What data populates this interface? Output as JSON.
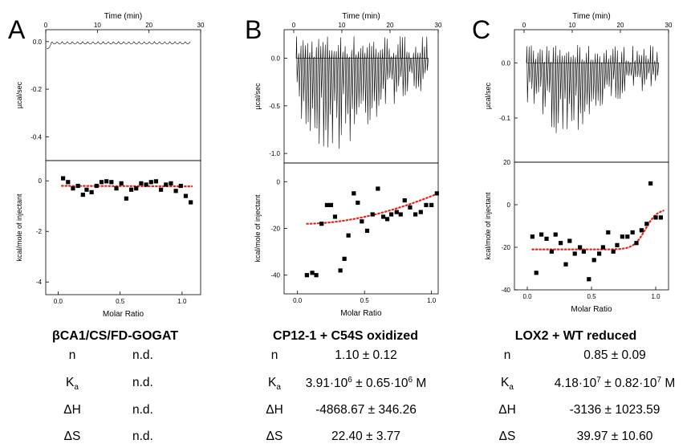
{
  "panels": [
    {
      "letter": "A",
      "title": "βCA1/CS/FD-GOGAT",
      "params": [
        {
          "sym": "n",
          "sub": "",
          "value": "n.d.",
          "sup1": "",
          "mid": "",
          "sup2": "",
          "end": ""
        },
        {
          "sym": "K",
          "sub": "a",
          "value": "n.d.",
          "sup1": "",
          "mid": "",
          "sup2": "",
          "end": ""
        },
        {
          "sym": "ΔH",
          "sub": "",
          "value": "n.d.",
          "sup1": "",
          "mid": "",
          "sup2": "",
          "end": ""
        },
        {
          "sym": "ΔS",
          "sub": "",
          "value": "n.d.",
          "sup1": "",
          "mid": "",
          "sup2": "",
          "end": ""
        }
      ]
    },
    {
      "letter": "B",
      "title": "CP12-1 + C54S oxidized",
      "params": [
        {
          "sym": "n",
          "sub": "",
          "value": "1.10 ± 0.12",
          "sup1": "",
          "mid": "",
          "sup2": "",
          "end": ""
        },
        {
          "sym": "K",
          "sub": "a",
          "value": "3.91·10",
          "sup1": "6",
          "mid": " ± 0.65·10",
          "sup2": "6",
          "end": " M"
        },
        {
          "sym": "ΔH",
          "sub": "",
          "value": "-4868.67 ± 346.26",
          "sup1": "",
          "mid": "",
          "sup2": "",
          "end": ""
        },
        {
          "sym": "ΔS",
          "sub": "",
          "value": "22.40 ± 3.77",
          "sup1": "",
          "mid": "",
          "sup2": "",
          "end": ""
        }
      ]
    },
    {
      "letter": "C",
      "title": "LOX2 + WT reduced",
      "params": [
        {
          "sym": "n",
          "sub": "",
          "value": "0.85 ± 0.09",
          "sup1": "",
          "mid": "",
          "sup2": "",
          "end": ""
        },
        {
          "sym": "K",
          "sub": "a",
          "value": "4.18·10",
          "sup1": "7",
          "mid": " ± 0.82·10",
          "sup2": "7",
          "end": " M"
        },
        {
          "sym": "ΔH",
          "sub": "",
          "value": "-3136 ± 1023.59",
          "sup1": "",
          "mid": "",
          "sup2": "",
          "end": ""
        },
        {
          "sym": "ΔS",
          "sub": "",
          "value": "39.97 ± 10.60",
          "sup1": "",
          "mid": "",
          "sup2": "",
          "end": ""
        }
      ]
    }
  ],
  "chart_data": [
    {
      "panel": "A",
      "type": "line",
      "title": "",
      "xlabel": "Time (min)",
      "ylabel": "µcal/sec",
      "xlim": [
        0,
        30
      ],
      "ylim": [
        -0.5,
        0.05
      ],
      "xticks": [
        0,
        10,
        20,
        30
      ],
      "yticks": [
        0.0,
        -0.2,
        -0.4
      ],
      "ytick_labels": [
        "0.0",
        "-0.2",
        "-0.4"
      ],
      "baseline": 0.0,
      "t_range": [
        0.2,
        28
      ],
      "trace": {
        "mode": "flat",
        "n_injections": 28,
        "amplitude": 0.02,
        "start_offset": -0.03
      }
    },
    {
      "panel": "A",
      "type": "scatter",
      "title": "",
      "xlabel": "Molar Ratio",
      "ylabel": "kcal/mole of injectant",
      "xlim": [
        -0.1,
        1.15
      ],
      "ylim": [
        -4.5,
        0.8
      ],
      "xticks": [
        0.0,
        0.5,
        1.0
      ],
      "yticks": [
        0,
        -2,
        -4
      ],
      "x": [
        0.04,
        0.08,
        0.12,
        0.16,
        0.2,
        0.23,
        0.27,
        0.31,
        0.35,
        0.39,
        0.43,
        0.47,
        0.51,
        0.55,
        0.59,
        0.63,
        0.67,
        0.71,
        0.75,
        0.79,
        0.83,
        0.87,
        0.91,
        0.95,
        0.99,
        1.03,
        1.07
      ],
      "y": [
        0.1,
        -0.05,
        -0.3,
        -0.2,
        -0.55,
        -0.35,
        -0.45,
        -0.2,
        -0.05,
        -0.02,
        -0.05,
        -0.3,
        -0.1,
        -0.7,
        -0.35,
        -0.3,
        -0.1,
        -0.15,
        -0.05,
        -0.02,
        -0.35,
        -0.15,
        -0.1,
        -0.4,
        -0.2,
        -0.6,
        -0.85
      ],
      "fit": {
        "x": [
          0.03,
          1.08
        ],
        "y": [
          -0.2,
          -0.22
        ]
      }
    },
    {
      "panel": "B",
      "type": "line",
      "title": "",
      "xlabel": "Time (min)",
      "ylabel": "µcal/sec",
      "xlim": [
        -2,
        30
      ],
      "ylim": [
        -1.1,
        0.3
      ],
      "xticks": [
        0,
        10,
        20,
        30
      ],
      "yticks": [
        0.0,
        -0.5,
        -1.0
      ],
      "ytick_labels": [
        "0.0",
        "-0.5",
        "-1.0"
      ],
      "baseline": 0.0,
      "t_range": [
        0.5,
        28
      ],
      "trace": {
        "mode": "spiky",
        "n_injections": 60,
        "amplitude": 1.0
      }
    },
    {
      "panel": "B",
      "type": "scatter",
      "title": "",
      "xlabel": "Molar Ratio",
      "ylabel": "kcal/mole of injectant",
      "xlim": [
        -0.1,
        1.05
      ],
      "ylim": [
        -48,
        8
      ],
      "xticks": [
        0.0,
        0.5,
        1.0
      ],
      "yticks": [
        0,
        -20,
        -40
      ],
      "x": [
        0.07,
        0.11,
        0.14,
        0.18,
        0.22,
        0.25,
        0.28,
        0.32,
        0.35,
        0.38,
        0.42,
        0.45,
        0.48,
        0.52,
        0.56,
        0.6,
        0.64,
        0.67,
        0.7,
        0.74,
        0.77,
        0.8,
        0.84,
        0.88,
        0.92,
        0.96,
        1.0,
        1.04
      ],
      "y": [
        -40,
        -39,
        -40,
        -18,
        -10,
        -10,
        -15,
        -38,
        -33,
        -23,
        -5,
        -9,
        -17,
        -21,
        -14,
        -3,
        -15,
        -16,
        -14,
        -13,
        -14,
        -8,
        -11,
        -14,
        -13,
        -10,
        -10,
        -5
      ],
      "fit": {
        "x": [
          0.07,
          1.05
        ],
        "y_start": -18,
        "y_end": -5
      }
    },
    {
      "panel": "C",
      "type": "line",
      "title": "",
      "xlabel": "Time (min)",
      "ylabel": "µcal/sec",
      "xlim": [
        -2,
        30
      ],
      "ylim": [
        -0.18,
        0.06
      ],
      "xticks": [
        0,
        10,
        20,
        30
      ],
      "yticks": [
        0.0,
        -0.1
      ],
      "ytick_labels": [
        "0.0",
        "-0.1"
      ],
      "baseline": 0.0,
      "t_range": [
        0.5,
        28
      ],
      "trace": {
        "mode": "spiky",
        "n_injections": 60,
        "amplitude": 0.13
      }
    },
    {
      "panel": "C",
      "type": "scatter",
      "title": "",
      "xlabel": "Molar Ratio",
      "ylabel": "kcal/mole of injectant",
      "xlim": [
        -0.1,
        1.1
      ],
      "ylim": [
        -40,
        20
      ],
      "xticks": [
        0.0,
        0.5,
        1.0
      ],
      "yticks": [
        20,
        0,
        -20,
        -40
      ],
      "x": [
        0.04,
        0.07,
        0.11,
        0.15,
        0.19,
        0.22,
        0.26,
        0.3,
        0.33,
        0.37,
        0.41,
        0.44,
        0.48,
        0.52,
        0.56,
        0.59,
        0.63,
        0.67,
        0.7,
        0.74,
        0.78,
        0.82,
        0.85,
        0.89,
        0.93,
        0.96,
        1.0,
        1.04
      ],
      "y": [
        -15,
        -32,
        -14,
        -16,
        -22,
        -14,
        -18,
        -28,
        -17,
        -23,
        -20,
        -22,
        -35,
        -26,
        -23,
        -20,
        -13,
        -22,
        -19,
        -15,
        -15,
        -13,
        -18,
        -12,
        -9,
        10,
        -6,
        -6
      ],
      "fit": {
        "x": [
          0.04,
          1.06
        ],
        "y_plateau": -21,
        "y_end": -2
      }
    }
  ]
}
